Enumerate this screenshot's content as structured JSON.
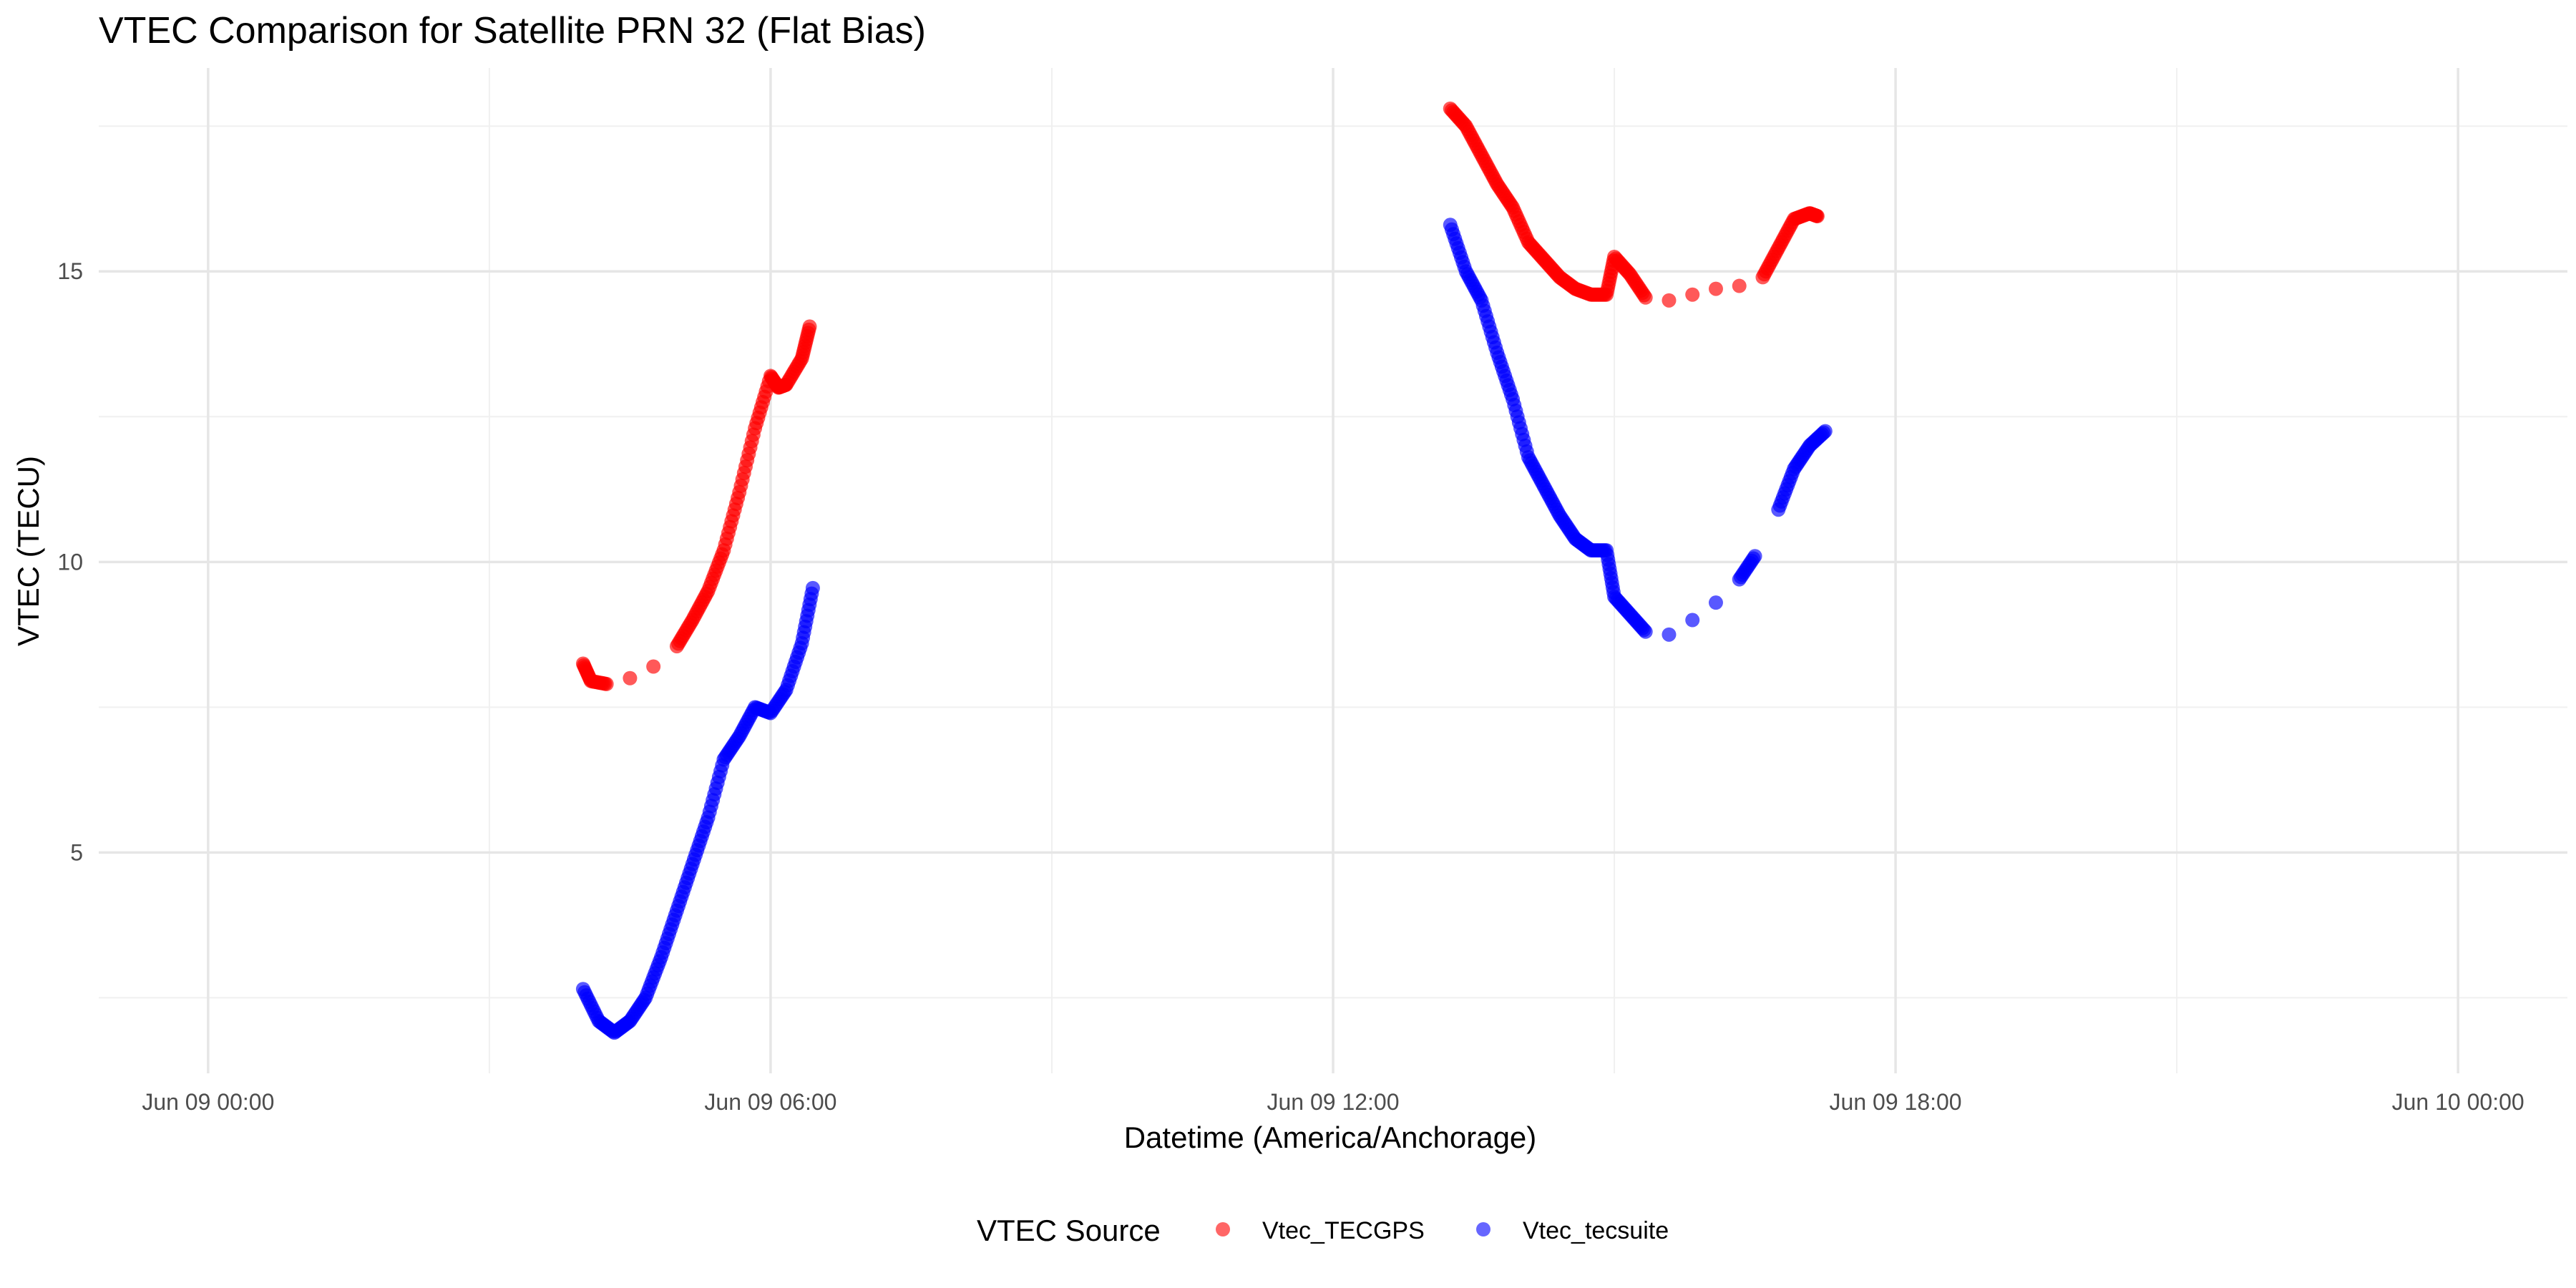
{
  "chart_data": {
    "type": "scatter",
    "title": "VTEC Comparison for Satellite PRN 32 (Flat Bias)",
    "xlabel": "Datetime (America/Anchorage)",
    "ylabel": "VTEC (TECU)",
    "x_type": "datetime",
    "xlim": [
      "2024-06-08T22:50",
      "2024-06-10T01:10"
    ],
    "ylim": [
      1.2,
      18.5
    ],
    "x_ticks": [
      {
        "value": "2024-06-09T00:00",
        "label": "Jun 09 00:00"
      },
      {
        "value": "2024-06-09T06:00",
        "label": "Jun 09 06:00"
      },
      {
        "value": "2024-06-09T12:00",
        "label": "Jun 09 12:00"
      },
      {
        "value": "2024-06-09T18:00",
        "label": "Jun 09 18:00"
      },
      {
        "value": "2024-06-10T00:00",
        "label": "Jun 10 00:00"
      }
    ],
    "x_minor_ticks": [
      "2024-06-09T03:00",
      "2024-06-09T09:00",
      "2024-06-09T15:00",
      "2024-06-09T21:00"
    ],
    "y_ticks": [
      5,
      10,
      15
    ],
    "y_minor_ticks": [
      2.5,
      7.5,
      12.5,
      17.5
    ],
    "grid": true,
    "legend": {
      "title": "VTEC Source",
      "position": "bottom"
    },
    "series": [
      {
        "name": "Vtec_TECGPS",
        "color": "#FF0000",
        "points": [
          [
            "2024-06-09T04:00",
            8.25
          ],
          [
            "2024-06-09T04:05",
            7.95
          ],
          [
            "2024-06-09T04:15",
            7.9
          ],
          [
            "2024-06-09T04:30",
            8.0
          ],
          [
            "2024-06-09T04:45",
            8.2
          ],
          [
            "2024-06-09T05:00",
            8.55
          ],
          [
            "2024-06-09T05:10",
            9.0
          ],
          [
            "2024-06-09T05:20",
            9.5
          ],
          [
            "2024-06-09T05:30",
            10.2
          ],
          [
            "2024-06-09T05:40",
            11.2
          ],
          [
            "2024-06-09T05:50",
            12.3
          ],
          [
            "2024-06-09T06:00",
            13.2
          ],
          [
            "2024-06-09T06:05",
            13.0
          ],
          [
            "2024-06-09T06:10",
            13.05
          ],
          [
            "2024-06-09T06:20",
            13.5
          ],
          [
            "2024-06-09T06:25",
            14.05
          ],
          [
            "2024-06-09T13:15",
            17.8
          ],
          [
            "2024-06-09T13:25",
            17.5
          ],
          [
            "2024-06-09T13:35",
            17.0
          ],
          [
            "2024-06-09T13:45",
            16.5
          ],
          [
            "2024-06-09T13:55",
            16.1
          ],
          [
            "2024-06-09T14:05",
            15.5
          ],
          [
            "2024-06-09T14:15",
            15.2
          ],
          [
            "2024-06-09T14:25",
            14.9
          ],
          [
            "2024-06-09T14:35",
            14.7
          ],
          [
            "2024-06-09T14:45",
            14.6
          ],
          [
            "2024-06-09T14:55",
            14.6
          ],
          [
            "2024-06-09T15:00",
            15.25
          ],
          [
            "2024-06-09T15:10",
            14.95
          ],
          [
            "2024-06-09T15:20",
            14.55
          ],
          [
            "2024-06-09T15:35",
            14.5
          ],
          [
            "2024-06-09T15:50",
            14.6
          ],
          [
            "2024-06-09T16:05",
            14.7
          ],
          [
            "2024-06-09T16:20",
            14.75
          ],
          [
            "2024-06-09T16:35",
            14.9
          ],
          [
            "2024-06-09T16:45",
            15.4
          ],
          [
            "2024-06-09T16:55",
            15.9
          ],
          [
            "2024-06-09T17:05",
            16.0
          ],
          [
            "2024-06-09T17:10",
            15.95
          ]
        ]
      },
      {
        "name": "Vtec_tecsuite",
        "color": "#0000FF",
        "points": [
          [
            "2024-06-09T04:00",
            2.65
          ],
          [
            "2024-06-09T04:10",
            2.1
          ],
          [
            "2024-06-09T04:20",
            1.9
          ],
          [
            "2024-06-09T04:30",
            2.1
          ],
          [
            "2024-06-09T04:40",
            2.5
          ],
          [
            "2024-06-09T04:50",
            3.2
          ],
          [
            "2024-06-09T05:00",
            4.0
          ],
          [
            "2024-06-09T05:10",
            4.8
          ],
          [
            "2024-06-09T05:20",
            5.6
          ],
          [
            "2024-06-09T05:30",
            6.6
          ],
          [
            "2024-06-09T05:40",
            7.0
          ],
          [
            "2024-06-09T05:50",
            7.5
          ],
          [
            "2024-06-09T06:00",
            7.4
          ],
          [
            "2024-06-09T06:10",
            7.8
          ],
          [
            "2024-06-09T06:20",
            8.6
          ],
          [
            "2024-06-09T06:27",
            9.55
          ],
          [
            "2024-06-09T13:15",
            15.8
          ],
          [
            "2024-06-09T13:25",
            15.0
          ],
          [
            "2024-06-09T13:35",
            14.5
          ],
          [
            "2024-06-09T13:45",
            13.6
          ],
          [
            "2024-06-09T13:55",
            12.8
          ],
          [
            "2024-06-09T14:05",
            11.8
          ],
          [
            "2024-06-09T14:15",
            11.3
          ],
          [
            "2024-06-09T14:25",
            10.8
          ],
          [
            "2024-06-09T14:35",
            10.4
          ],
          [
            "2024-06-09T14:45",
            10.2
          ],
          [
            "2024-06-09T14:55",
            10.2
          ],
          [
            "2024-06-09T15:00",
            9.4
          ],
          [
            "2024-06-09T15:10",
            9.1
          ],
          [
            "2024-06-09T15:20",
            8.8
          ],
          [
            "2024-06-09T15:35",
            8.75
          ],
          [
            "2024-06-09T15:50",
            9.0
          ],
          [
            "2024-06-09T16:05",
            9.3
          ],
          [
            "2024-06-09T16:20",
            9.7
          ],
          [
            "2024-06-09T16:30",
            10.1
          ],
          [
            "2024-06-09T16:45",
            10.9
          ],
          [
            "2024-06-09T16:55",
            11.6
          ],
          [
            "2024-06-09T17:05",
            12.0
          ],
          [
            "2024-06-09T17:15",
            12.25
          ]
        ]
      }
    ]
  }
}
